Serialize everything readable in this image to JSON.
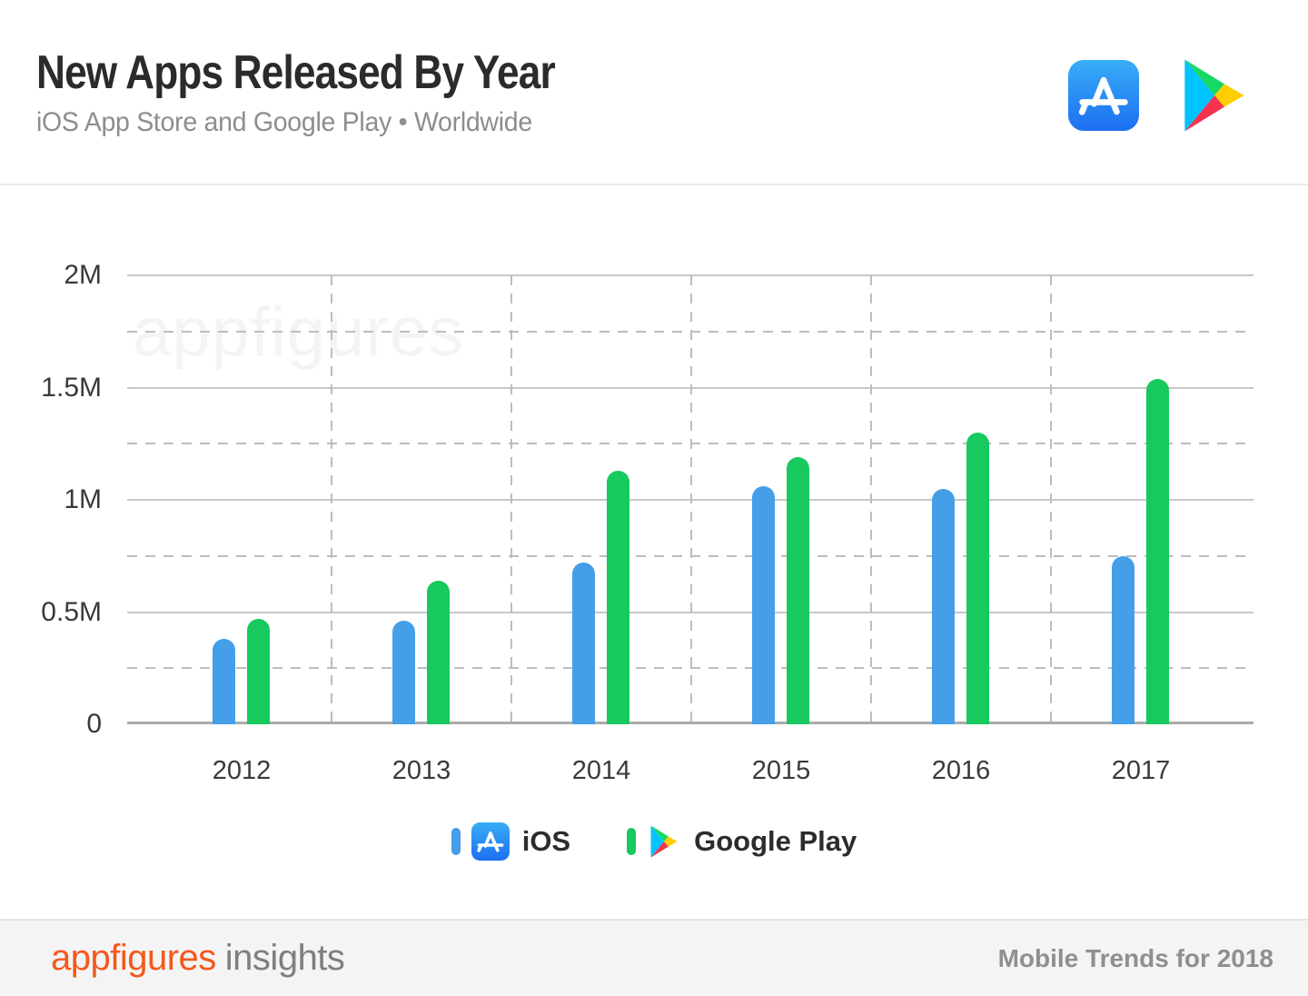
{
  "header": {
    "title": "New Apps Released By Year",
    "subtitle": "iOS App Store and Google Play • Worldwide"
  },
  "chart_data": {
    "type": "bar",
    "title": "New Apps Released By Year",
    "subtitle": "iOS App Store and Google Play • Worldwide",
    "unit": "new apps released (millions)",
    "categories": [
      "2012",
      "2013",
      "2014",
      "2015",
      "2016",
      "2017"
    ],
    "series": [
      {
        "name": "iOS",
        "color": "#459FE8",
        "values_millions": [
          0.38,
          0.46,
          0.72,
          1.06,
          1.05,
          0.75
        ]
      },
      {
        "name": "Google Play",
        "color": "#17C95F",
        "values_millions": [
          0.47,
          0.64,
          1.13,
          1.19,
          1.3,
          1.54
        ]
      }
    ],
    "y_axis": {
      "ticks": [
        {
          "label": "2M",
          "value": 2
        },
        {
          "label": "1.5M",
          "value": 1.5
        },
        {
          "label": "1M",
          "value": 1
        },
        {
          "label": "0.5M",
          "value": 0.5
        },
        {
          "label": "0",
          "value": 0
        }
      ],
      "minor_dashed_values": [
        1.75,
        1.25,
        0.75,
        0.25
      ],
      "range_millions": [
        0,
        2
      ]
    },
    "grid": {
      "horizontal_solid_major": true,
      "horizontal_dashed_minor": true,
      "vertical_dashed_between_categories": true
    },
    "legend_position": "bottom",
    "watermark": "appfigures"
  },
  "legend": {
    "items": [
      {
        "label": "iOS",
        "color": "#459FE8"
      },
      {
        "label": "Google Play",
        "color": "#17C95F"
      }
    ]
  },
  "footer": {
    "brand": "appfigures",
    "brand_suffix": "insights",
    "right_text": "Mobile Trends for 2018"
  },
  "colors": {
    "ios_bar": "#459FE8",
    "google_play_bar": "#17C95F",
    "title_text": "#2B2B2B",
    "subtitle_text": "#8D8D8D",
    "axis_text": "#3A3A3A",
    "grid_solid": "#C7C7C7",
    "grid_dashed": "#BDBDBD",
    "baseline": "#ABABAB",
    "footer_bg": "#F4F4F4",
    "brand_orange": "#F4581D",
    "watermark": "#F4F4F4"
  }
}
